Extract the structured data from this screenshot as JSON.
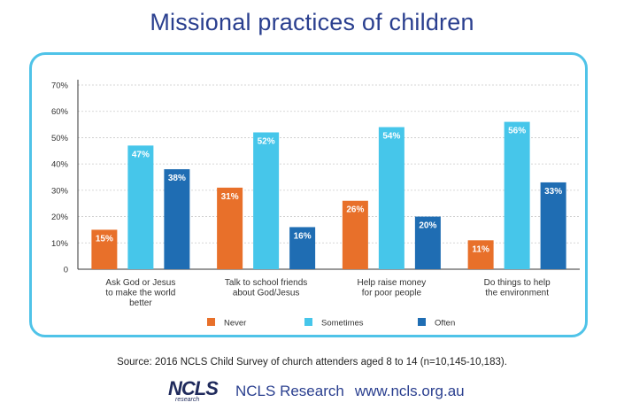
{
  "title": "Missional practices of children",
  "source": "Source: 2016 NCLS Child Survey of church attenders aged 8 to 14 (n=10,145-10,183).",
  "footer": {
    "logo_text": "NCLS",
    "logo_subtext": "research",
    "brand": "NCLS Research",
    "url": "www.ncls.org.au"
  },
  "colors": {
    "frame": "#4fc3e8",
    "title": "#2a3f8f"
  },
  "chart_data": {
    "type": "bar",
    "categories": [
      [
        "Ask God or Jesus",
        "to make the world",
        "better"
      ],
      [
        "Talk to school friends",
        "about God/Jesus"
      ],
      [
        "Help raise money",
        "for poor people"
      ],
      [
        "Do things to help",
        "the environment"
      ]
    ],
    "series": [
      {
        "name": "Never",
        "color": "#e8702a",
        "values": [
          15,
          31,
          26,
          11
        ],
        "labels": [
          "15%",
          "31%",
          "26%",
          "11%"
        ]
      },
      {
        "name": "Sometimes",
        "color": "#46c6ea",
        "values": [
          47,
          52,
          54,
          56
        ],
        "labels": [
          "47%",
          "52%",
          "54%",
          "56%"
        ]
      },
      {
        "name": "Often",
        "color": "#1f6db3",
        "values": [
          38,
          16,
          20,
          33
        ],
        "labels": [
          "38%",
          "16%",
          "20%",
          "33%"
        ]
      }
    ],
    "yticks": [
      {
        "value": 0,
        "label": "0"
      },
      {
        "value": 10,
        "label": "10%"
      },
      {
        "value": 20,
        "label": "20%"
      },
      {
        "value": 30,
        "label": "30%"
      },
      {
        "value": 40,
        "label": "40%"
      },
      {
        "value": 50,
        "label": "50%"
      },
      {
        "value": 60,
        "label": "60%"
      },
      {
        "value": 70,
        "label": "70%"
      }
    ],
    "ylim": [
      0,
      70
    ],
    "grid": true,
    "legend": "bottom"
  }
}
